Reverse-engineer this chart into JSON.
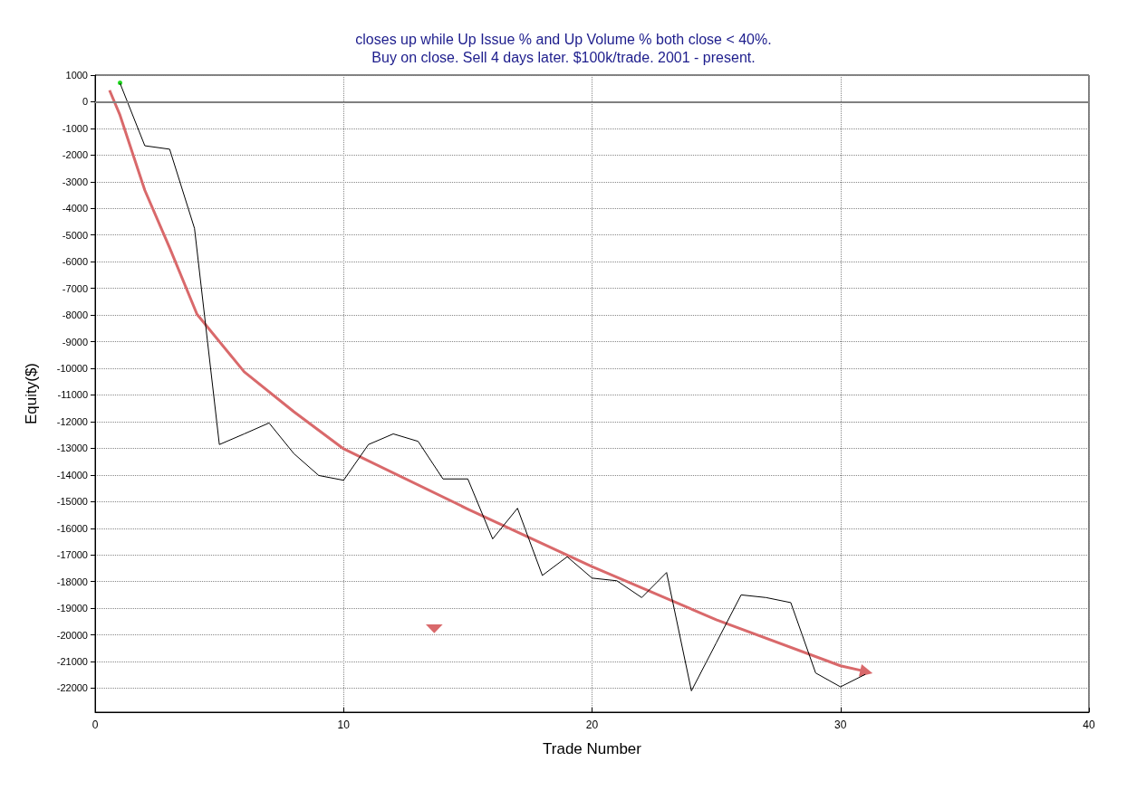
{
  "chart_data": {
    "type": "line",
    "title": "closes up while Up Issue % and Up Volume % both close < 40%.",
    "subtitle": "Buy on close. Sell 4 days later. $100k/trade. 2001 - present.",
    "xlabel": "Trade Number",
    "ylabel": "Equity($)",
    "x": [
      1,
      2,
      3,
      4,
      5,
      6,
      7,
      8,
      9,
      10,
      11,
      12,
      13,
      14,
      15,
      16,
      17,
      18,
      19,
      20,
      21,
      22,
      23,
      24,
      25,
      26,
      27,
      28,
      29,
      30,
      31
    ],
    "series": [
      {
        "color": "#000000",
        "values": [
          700,
          -1650,
          -1780,
          -4750,
          -12860,
          -12460,
          -12050,
          -13200,
          -14020,
          -14200,
          -12860,
          -12460,
          -12740,
          -14150,
          -14150,
          -16400,
          -15250,
          -17770,
          -17070,
          -17870,
          -17970,
          -18600,
          -17660,
          -22100,
          -20300,
          -18500,
          -18600,
          -18790,
          -21430,
          -21950,
          -21480
        ]
      },
      {
        "type": "line",
        "color": "#d9696b",
        "x": [
          0.58,
          1,
          2,
          3,
          4.1,
          6,
          8,
          10,
          15,
          20,
          25,
          30,
          30.95
        ],
        "values": [
          430,
          -500,
          -3320,
          -5480,
          -7970,
          -10130,
          -11630,
          -13020,
          -15280,
          -17440,
          -19430,
          -21160,
          -21360
        ]
      }
    ],
    "xlim": [
      0,
      40
    ],
    "xticks": [
      0,
      10,
      20,
      30,
      40
    ],
    "ylim": [
      -22900,
      1000
    ],
    "yticks": [
      1000,
      0,
      -1000,
      -2000,
      -3000,
      -4000,
      -5000,
      -6000,
      -7000,
      -8000,
      -9000,
      -10000,
      -11000,
      -12000,
      -13000,
      -14000,
      -15000,
      -16000,
      -17000,
      -18000,
      -19000,
      -20000,
      -21000,
      -22000
    ],
    "ref_lines": [
      {
        "axis": "y",
        "value": 0,
        "color": "#808080"
      }
    ],
    "grid": true,
    "marker": "none",
    "line_style": "solid"
  }
}
